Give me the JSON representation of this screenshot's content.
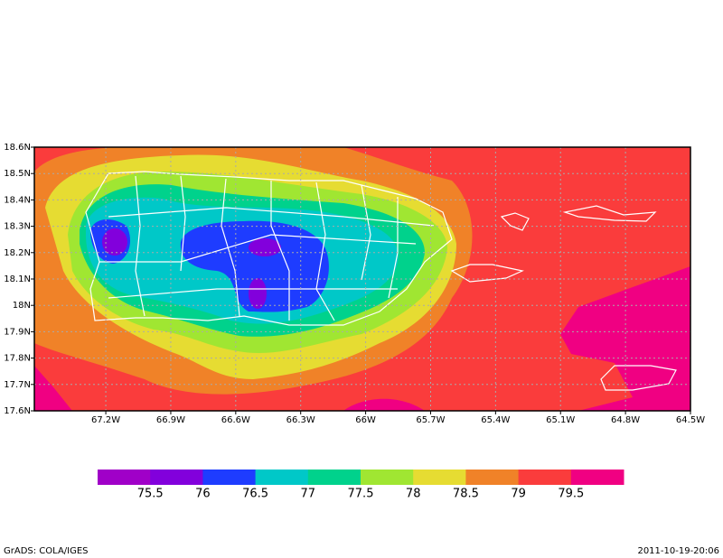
{
  "chart_data": {
    "type": "filled-contour",
    "xlim": [
      -67.53,
      -64.5
    ],
    "ylim": [
      17.6,
      18.6
    ],
    "xticks": [
      {
        "value": -67.2,
        "label": "67.2W"
      },
      {
        "value": -66.9,
        "label": "66.9W"
      },
      {
        "value": -66.6,
        "label": "66.6W"
      },
      {
        "value": -66.3,
        "label": "66.3W"
      },
      {
        "value": -66.0,
        "label": "66W"
      },
      {
        "value": -65.7,
        "label": "65.7W"
      },
      {
        "value": -65.4,
        "label": "65.4W"
      },
      {
        "value": -65.1,
        "label": "65.1W"
      },
      {
        "value": -64.8,
        "label": "64.8W"
      },
      {
        "value": -64.5,
        "label": "64.5W"
      }
    ],
    "yticks": [
      {
        "value": 17.6,
        "label": "17.6N"
      },
      {
        "value": 17.7,
        "label": "17.7N"
      },
      {
        "value": 17.8,
        "label": "17.8N"
      },
      {
        "value": 17.9,
        "label": "17.9N"
      },
      {
        "value": 18.0,
        "label": "18N"
      },
      {
        "value": 18.1,
        "label": "18.1N"
      },
      {
        "value": 18.2,
        "label": "18.2N"
      },
      {
        "value": 18.3,
        "label": "18.3N"
      },
      {
        "value": 18.4,
        "label": "18.4N"
      },
      {
        "value": 18.5,
        "label": "18.5N"
      },
      {
        "value": 18.6,
        "label": "18.6N"
      }
    ],
    "grid": true,
    "levels": [
      75.5,
      76,
      76.5,
      77,
      77.5,
      78,
      78.5,
      79,
      79.5
    ],
    "colors": [
      "#a000c8",
      "#8200dc",
      "#1e3cff",
      "#00c8c8",
      "#00d28c",
      "#a0e632",
      "#e6dc32",
      "#f08228",
      "#fa3c3c",
      "#f00082"
    ],
    "footer_left": "GrADS: COLA/IGES",
    "footer_right": "2011-10-19-20:06"
  }
}
